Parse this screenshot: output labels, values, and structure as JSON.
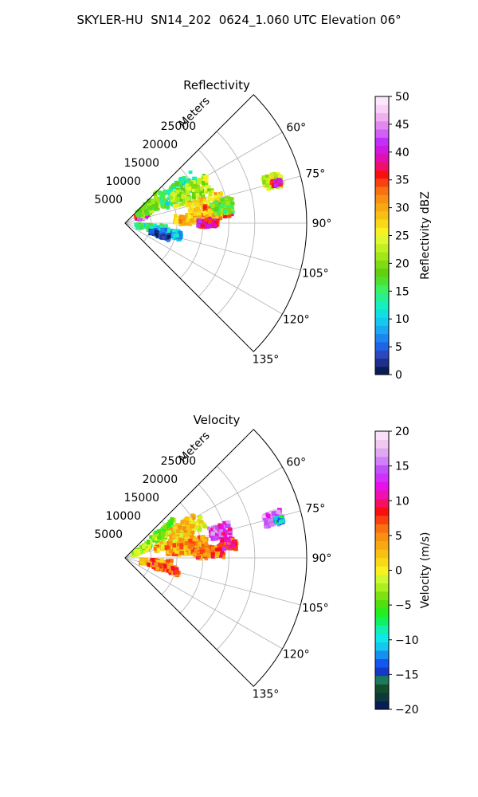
{
  "figure": {
    "title": "SKYLER-HU  SN14_202  0624_1.060 UTC Elevation 06°"
  },
  "chart_data": [
    {
      "type": "heatmap",
      "subtype": "polar-sector (radar PPI)",
      "title": "Reflectivity",
      "radial_label": "Meters",
      "radial_ticks": [
        5000,
        10000,
        15000,
        20000,
        25000
      ],
      "radial_range": [
        0,
        35000
      ],
      "theta_range_deg": [
        45,
        135
      ],
      "theta_ticks": [
        "60°",
        "75°",
        "90°",
        "105°",
        "120°",
        "135°"
      ],
      "grid": true,
      "colorbar": {
        "label": "Reflectivity dBZ",
        "range": [
          0,
          50
        ],
        "ticks": [
          0,
          5,
          10,
          15,
          20,
          25,
          30,
          35,
          40,
          45,
          50
        ],
        "colors": [
          "#081d58",
          "#1f2f8a",
          "#2c48c0",
          "#1e64e6",
          "#1c86f0",
          "#1aa8f4",
          "#14c8f0",
          "#10e0e0",
          "#14f0c0",
          "#28f090",
          "#3cf060",
          "#50e030",
          "#60d010",
          "#80dc10",
          "#a0e818",
          "#c0f020",
          "#e0f830",
          "#f8f020",
          "#f8d818",
          "#f8c010",
          "#f8a810",
          "#f89010",
          "#f87010",
          "#f84010",
          "#f81010",
          "#f0106a",
          "#e010b0",
          "#d018e0",
          "#c030f8",
          "#d060f8",
          "#e088f0",
          "#f0b0f0",
          "#f8d0f8",
          "#fce8fc"
        ]
      },
      "echoes": [
        {
          "theta": 62,
          "r": 3500,
          "dr": 2200,
          "dth": 16,
          "value": 36
        },
        {
          "theta": 70,
          "r": 3500,
          "dr": 1500,
          "dth": 8,
          "value": 44
        },
        {
          "theta": 55,
          "r": 6000,
          "dr": 6000,
          "dth": 22,
          "value": 20
        },
        {
          "theta": 60,
          "r": 12000,
          "dr": 8000,
          "dth": 18,
          "value": 14
        },
        {
          "theta": 65,
          "r": 14000,
          "dr": 8000,
          "dth": 14,
          "value": 22
        },
        {
          "theta": 78,
          "r": 16000,
          "dr": 7000,
          "dth": 12,
          "value": 27
        },
        {
          "theta": 82,
          "r": 18000,
          "dr": 5000,
          "dth": 10,
          "value": 34
        },
        {
          "theta": 86,
          "r": 14000,
          "dr": 9000,
          "dth": 10,
          "value": 29
        },
        {
          "theta": 90,
          "r": 16000,
          "dr": 4000,
          "dth": 5,
          "value": 38
        },
        {
          "theta": 80,
          "r": 19000,
          "dr": 4000,
          "dth": 8,
          "value": 18
        },
        {
          "theta": 100,
          "r": 5000,
          "dr": 6000,
          "dth": 14,
          "value": 14
        },
        {
          "theta": 103,
          "r": 8000,
          "dr": 6000,
          "dth": 10,
          "value": 9
        },
        {
          "theta": 108,
          "r": 7000,
          "dr": 4000,
          "dth": 6,
          "value": 3
        },
        {
          "theta": 74,
          "r": 29500,
          "dr": 3500,
          "dth": 5,
          "value": 24
        },
        {
          "theta": 75,
          "r": 30000,
          "dr": 1800,
          "dth": 2,
          "value": 38
        }
      ]
    },
    {
      "type": "heatmap",
      "subtype": "polar-sector (radar PPI)",
      "title": "Velocity",
      "radial_label": "Meters",
      "radial_ticks": [
        5000,
        10000,
        15000,
        20000,
        25000
      ],
      "radial_range": [
        0,
        35000
      ],
      "theta_range_deg": [
        45,
        135
      ],
      "theta_ticks": [
        "60°",
        "75°",
        "90°",
        "105°",
        "120°",
        "135°"
      ],
      "grid": true,
      "colorbar": {
        "label": "Velocity (m/s)",
        "range": [
          -20,
          20
        ],
        "ticks": [
          -20,
          -15,
          -10,
          -5,
          0,
          5,
          10,
          15,
          20
        ],
        "colors": [
          "#081d58",
          "#0c3a3a",
          "#124e2a",
          "#1c7a5a",
          "#1438c8",
          "#1456f0",
          "#1490f0",
          "#14c8f0",
          "#10e8e8",
          "#10f0b0",
          "#10f060",
          "#20f020",
          "#50e010",
          "#80e010",
          "#a8f020",
          "#d0f830",
          "#f8f020",
          "#f8d818",
          "#f8c010",
          "#f8a810",
          "#f89010",
          "#f87010",
          "#f84010",
          "#f81010",
          "#f81060",
          "#f010b0",
          "#e810e8",
          "#d030f8",
          "#c050f8",
          "#d080f8",
          "#e0a8f0",
          "#f0c8f0",
          "#f8e0f8"
        ]
      },
      "echoes": [
        {
          "theta": 62,
          "r": 3500,
          "dr": 4000,
          "dth": 16,
          "value": -3
        },
        {
          "theta": 56,
          "r": 9000,
          "dr": 6000,
          "dth": 12,
          "value": -4
        },
        {
          "theta": 63,
          "r": 13000,
          "dr": 7000,
          "dth": 12,
          "value": 1
        },
        {
          "theta": 72,
          "r": 10000,
          "dr": 8000,
          "dth": 10,
          "value": 3
        },
        {
          "theta": 80,
          "r": 12000,
          "dr": 8000,
          "dth": 12,
          "value": 4
        },
        {
          "theta": 86,
          "r": 16000,
          "dr": 6000,
          "dth": 8,
          "value": 6
        },
        {
          "theta": 74,
          "r": 19000,
          "dr": 4000,
          "dth": 8,
          "value": 13
        },
        {
          "theta": 82,
          "r": 20000,
          "dr": 3000,
          "dth": 6,
          "value": 9
        },
        {
          "theta": 100,
          "r": 6000,
          "dr": 6000,
          "dth": 14,
          "value": 5
        },
        {
          "theta": 104,
          "r": 8000,
          "dr": 5000,
          "dth": 8,
          "value": 7
        },
        {
          "theta": 75,
          "r": 29500,
          "dr": 3500,
          "dth": 5,
          "value": 15
        },
        {
          "theta": 76,
          "r": 30500,
          "dr": 1500,
          "dth": 2,
          "value": -10
        }
      ]
    }
  ]
}
